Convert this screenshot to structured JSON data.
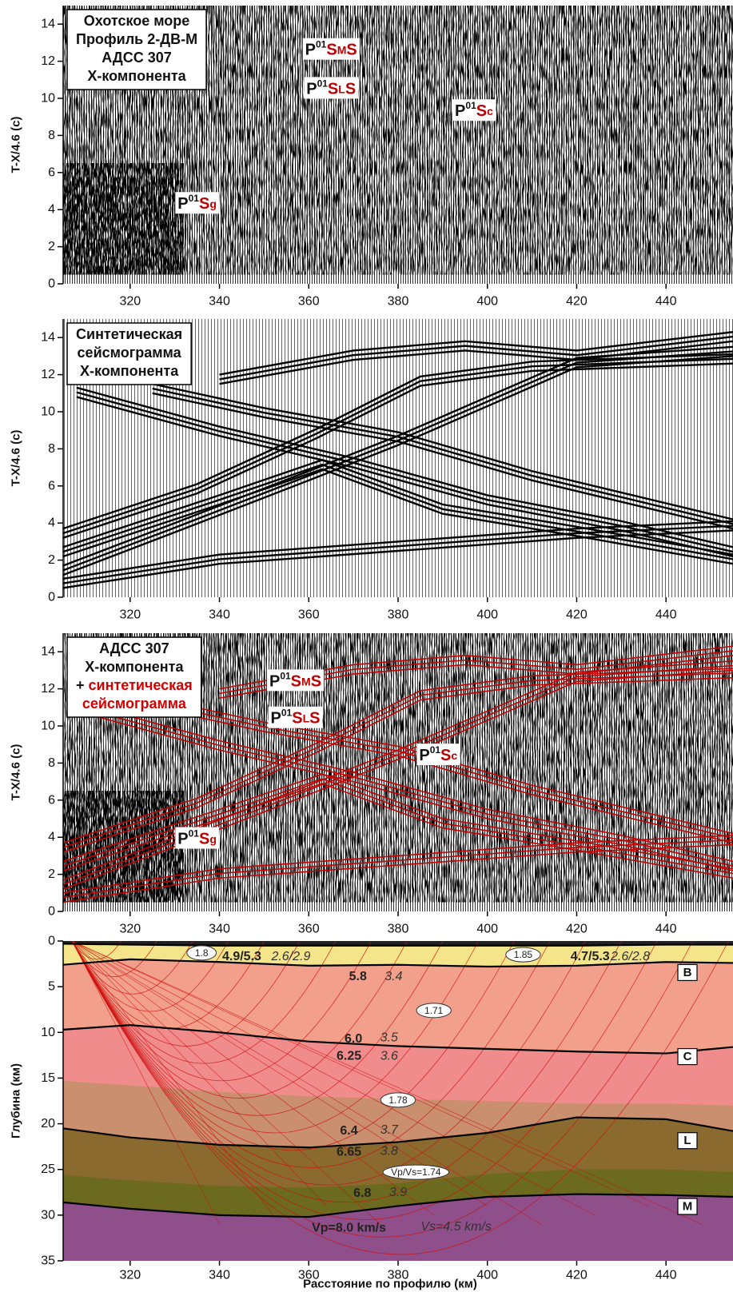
{
  "panels": [
    {
      "type": "seismogram",
      "variant": "observed",
      "ylabel": "T-X/4.6 (с)",
      "xlim": [
        305,
        455
      ],
      "ylim": [
        0,
        15
      ],
      "xticks": [
        320,
        340,
        360,
        380,
        400,
        420,
        440
      ],
      "yticks": [
        0,
        2,
        4,
        6,
        8,
        10,
        12,
        14
      ],
      "legend": [
        {
          "text": "Охотское море"
        },
        {
          "text": "Профиль 2-ДВ-М"
        },
        {
          "text": "АДСС 307"
        },
        {
          "text": "X-компонента"
        }
      ],
      "phases": [
        {
          "main": "P",
          "sup": "01",
          "wave": "S",
          "sub": "M",
          "end": "S"
        },
        {
          "main": "P",
          "sup": "01",
          "wave": "S",
          "sub": "L",
          "end": "S"
        },
        {
          "main": "P",
          "sup": "01",
          "wave": "S",
          "sub": "c"
        },
        {
          "main": "P",
          "sup": "01",
          "wave": "S",
          "sub": "g"
        }
      ]
    },
    {
      "type": "seismogram",
      "variant": "synthetic",
      "ylabel": "T-X/4.6 (с)",
      "xlim": [
        305,
        455
      ],
      "ylim": [
        0,
        15
      ],
      "xticks": [
        320,
        340,
        360,
        380,
        400,
        420,
        440
      ],
      "yticks": [
        0,
        2,
        4,
        6,
        8,
        10,
        12,
        14
      ],
      "legend": [
        {
          "text": "Синтетическая"
        },
        {
          "text": "сейсмограмма"
        },
        {
          "text": "X-компонента"
        }
      ],
      "phases": []
    },
    {
      "type": "seismogram",
      "variant": "overlay",
      "ylabel": "T-X/4.6 (с)",
      "xlim": [
        305,
        455
      ],
      "ylim": [
        0,
        15
      ],
      "xticks": [
        320,
        340,
        360,
        380,
        400,
        420,
        440
      ],
      "yticks": [
        0,
        2,
        4,
        6,
        8,
        10,
        12,
        14
      ],
      "legend": [
        {
          "text": "АДСС 307"
        },
        {
          "text": "X-компонента"
        },
        {
          "prefix": "+",
          "text": "синтетическая",
          "color": "#d40000"
        },
        {
          "text": "сейсмограмма",
          "color": "#d40000"
        }
      ],
      "phases": [
        {
          "main": "P",
          "sup": "01",
          "wave": "S",
          "sub": "M",
          "end": "S"
        },
        {
          "main": "P",
          "sup": "01",
          "wave": "S",
          "sub": "L",
          "end": "S"
        },
        {
          "main": "P",
          "sup": "01",
          "wave": "S",
          "sub": "c"
        },
        {
          "main": "P",
          "sup": "01",
          "wave": "S",
          "sub": "g"
        }
      ]
    }
  ],
  "model": {
    "type": "velocity-model",
    "ylabel": "Глубина (км)",
    "xlabel": "Расстояние по профилю (км)",
    "xlim": [
      305,
      455
    ],
    "ylim": [
      0,
      35
    ],
    "xticks": [
      320,
      340,
      360,
      380,
      400,
      420,
      440
    ],
    "yticks": [
      0,
      5,
      10,
      15,
      20,
      25,
      30,
      35
    ],
    "x": [
      305,
      320,
      340,
      360,
      380,
      400,
      420,
      440,
      455
    ],
    "top_color": "#222222",
    "interfaces": [
      {
        "depth": [
          0.3,
          0.4,
          0.5,
          0.5,
          0.5,
          0.5,
          0.5,
          0.4,
          0.4
        ],
        "boundary": true,
        "color": "#f4e48a"
      },
      {
        "depth": [
          2.6,
          2.0,
          2.3,
          2.7,
          2.6,
          2.8,
          2.7,
          2.3,
          2.4
        ],
        "boundary": true,
        "label": "B",
        "color": "#f2a08c"
      },
      {
        "depth": [
          9.7,
          9.2,
          10.0,
          11.0,
          11.5,
          11.8,
          12.1,
          12.3,
          11.6
        ],
        "boundary": true,
        "label": "C",
        "color": "#f08c8c"
      },
      {
        "depth": [
          15.3,
          15.8,
          16.5,
          17.0,
          17.3,
          17.5,
          17.8,
          17.8,
          18.0
        ],
        "boundary": false,
        "color": "#c98f6e"
      },
      {
        "depth": [
          20.5,
          21.5,
          22.3,
          22.6,
          22.0,
          21.0,
          19.3,
          19.5,
          20.8
        ],
        "boundary": true,
        "label": "L",
        "color": "#8a6a2e"
      },
      {
        "depth": [
          25.6,
          26.2,
          26.8,
          27.0,
          26.5,
          25.5,
          25.0,
          25.0,
          25.3
        ],
        "boundary": false,
        "color": "#6b6a1e"
      },
      {
        "depth": [
          28.6,
          29.3,
          30.0,
          30.2,
          29.0,
          28.0,
          27.7,
          27.8,
          28.0
        ],
        "boundary": true,
        "label": "M",
        "color": "#8e4f8a"
      }
    ],
    "labels": [
      {
        "text": "1.8",
        "style": "oval"
      },
      {
        "text": "4.9/5.3",
        "style": "bold"
      },
      {
        "text": "2.6/2.9",
        "style": "italic"
      },
      {
        "text": "5.8",
        "style": "bold"
      },
      {
        "text": "3.4",
        "style": "italic"
      },
      {
        "text": "1.85",
        "style": "oval"
      },
      {
        "text": "4.7/5.3",
        "style": "bold"
      },
      {
        "text": "2.6/2.8",
        "style": "italic"
      },
      {
        "text": "1.71",
        "style": "oval"
      },
      {
        "text": "6.0",
        "style": "bold"
      },
      {
        "text": "3.5",
        "style": "italic"
      },
      {
        "text": "6.25",
        "style": "bold"
      },
      {
        "text": "3.6",
        "style": "italic"
      },
      {
        "text": "1.78",
        "style": "oval"
      },
      {
        "text": "6.4",
        "style": "bold"
      },
      {
        "text": "3.7",
        "style": "italic"
      },
      {
        "text": "6.65",
        "style": "bold"
      },
      {
        "text": "3.8",
        "style": "italic"
      },
      {
        "text": "Vp/Vs=1.74",
        "style": "oval"
      },
      {
        "text": "6.8",
        "style": "bold"
      },
      {
        "text": "3.9",
        "style": "italic"
      },
      {
        "text": "Vp=8.0 km/s",
        "style": "bold"
      },
      {
        "text": "Vs=4.5 km/s",
        "style": "italic"
      }
    ]
  }
}
